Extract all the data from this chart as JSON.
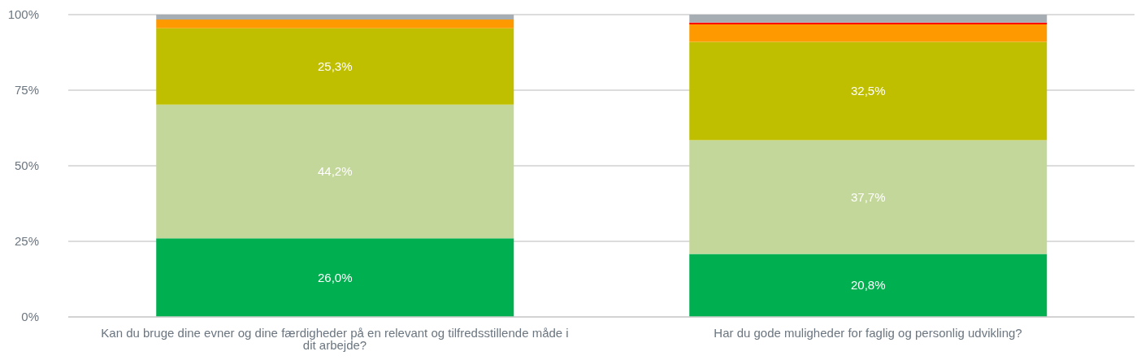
{
  "chart_data": {
    "type": "bar",
    "stacked": true,
    "categories": [
      "Kan du bruge dine evner og dine færdigheder på en relevant og tilfredsstillende måde i dit arbejde?",
      "Har du gode muligheder for faglig og personlig udvikling?"
    ],
    "series": [
      {
        "color": "#00b050",
        "values": [
          26.0,
          20.8
        ],
        "value_labels": [
          "26,0%",
          "20,8%"
        ]
      },
      {
        "color": "#c4d79b",
        "values": [
          44.2,
          37.7
        ],
        "value_labels": [
          "44,2%",
          "37,7%"
        ]
      },
      {
        "color": "#bfbf00",
        "values": [
          25.3,
          32.5
        ],
        "value_labels": [
          "25,3%",
          "32,5%"
        ]
      },
      {
        "color": "#ff9900",
        "values": [
          2.9,
          5.8
        ]
      },
      {
        "color": "#ff0000",
        "values": [
          0,
          0.6
        ]
      },
      {
        "color": "#a6aeb4",
        "values": [
          1.6,
          2.6
        ]
      }
    ],
    "ylim": [
      0,
      100
    ],
    "yticks": [
      {
        "value": 0,
        "label": "0%"
      },
      {
        "value": 25,
        "label": "25%"
      },
      {
        "value": 50,
        "label": "50%"
      },
      {
        "value": 75,
        "label": "75%"
      },
      {
        "value": 100,
        "label": "100%"
      }
    ],
    "grid": "y",
    "legend": false
  }
}
